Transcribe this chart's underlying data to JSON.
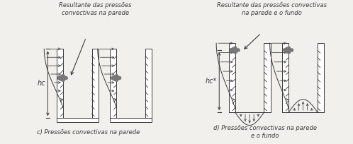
{
  "bg_color": "#f2f0ec",
  "line_color": "#3a3a3a",
  "gray_fill": "#777777",
  "label_c": "c) Pressões convectivas na parede",
  "label_d": "d) Pressões convectivas na parede\ne o fundo",
  "title_c": "Resultante das pressões\nconvectivas na parede",
  "title_d": "Resultante das pressões convectivas\nna parede e o fundo",
  "hc_label": "hc",
  "hc_star_label": "hc*"
}
